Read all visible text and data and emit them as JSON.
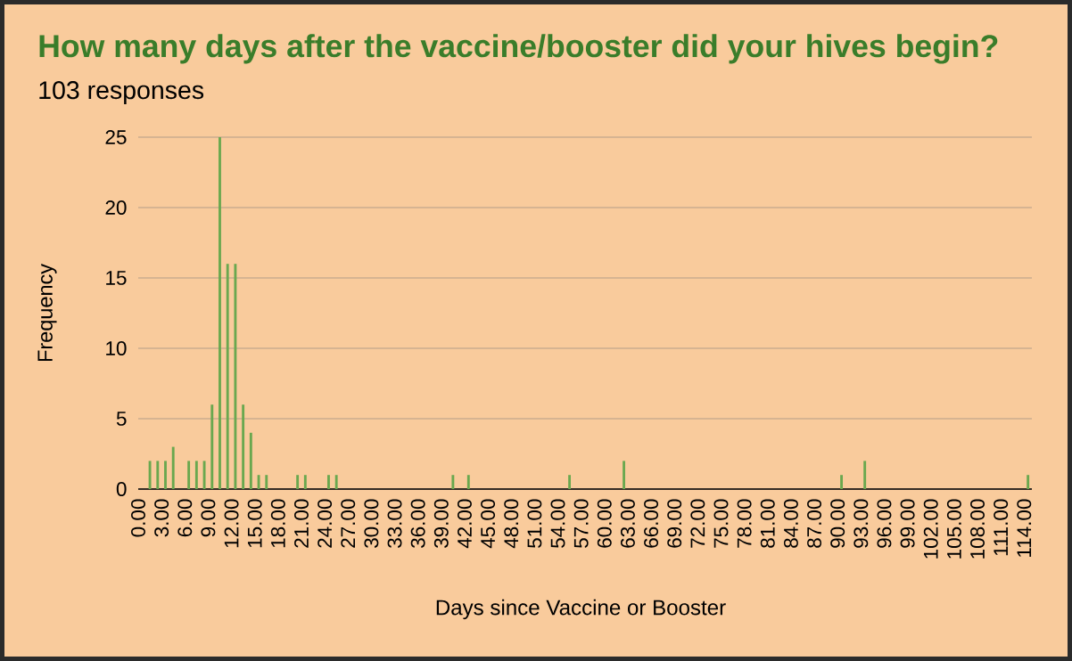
{
  "chart_data": {
    "type": "histogram",
    "title": "How many days after the vaccine/booster did your hives begin?",
    "subtitle": "103 responses",
    "xlabel": "Days since Vaccine or Booster",
    "ylabel": "Frequency",
    "bins": [
      0,
      1,
      2,
      3,
      4,
      5,
      6,
      7,
      8,
      9,
      10,
      11,
      12,
      13,
      14,
      15,
      16,
      17,
      18,
      19,
      20,
      21,
      22,
      23,
      24,
      25,
      26,
      27,
      28,
      29,
      30,
      31,
      32,
      33,
      34,
      35,
      36,
      37,
      38,
      39,
      40,
      41,
      42,
      43,
      44,
      45,
      46,
      47,
      48,
      49,
      50,
      51,
      52,
      53,
      54,
      55,
      56,
      57,
      58,
      59,
      60,
      61,
      62,
      63,
      64,
      65,
      66,
      67,
      68,
      69,
      70,
      71,
      72,
      73,
      74,
      75,
      76,
      77,
      78,
      79,
      80,
      81,
      82,
      83,
      84,
      85,
      86,
      87,
      88,
      89,
      90,
      91,
      92,
      93,
      94,
      95,
      96,
      97,
      98,
      99,
      100,
      101,
      102,
      103,
      104,
      105,
      106,
      107,
      108,
      109,
      110,
      111,
      112,
      113,
      114,
      115
    ],
    "values": [
      0,
      2,
      2,
      2,
      3,
      0,
      2,
      2,
      2,
      6,
      25,
      16,
      16,
      6,
      4,
      1,
      1,
      0,
      0,
      0,
      1,
      1,
      0,
      0,
      1,
      1,
      0,
      0,
      0,
      0,
      0,
      0,
      0,
      0,
      0,
      0,
      0,
      0,
      0,
      0,
      1,
      0,
      1,
      0,
      0,
      0,
      0,
      0,
      0,
      0,
      0,
      0,
      0,
      0,
      0,
      1,
      0,
      0,
      0,
      0,
      0,
      0,
      2,
      0,
      0,
      0,
      0,
      0,
      0,
      0,
      0,
      0,
      0,
      0,
      0,
      0,
      0,
      0,
      0,
      0,
      0,
      0,
      0,
      0,
      0,
      0,
      0,
      0,
      0,
      0,
      1,
      0,
      0,
      2,
      0,
      0,
      0,
      0,
      0,
      0,
      0,
      0,
      0,
      0,
      0,
      0,
      0,
      0,
      0,
      0,
      0,
      0,
      0,
      0,
      1
    ],
    "color": "#6aa84f",
    "xlim": [
      0,
      115
    ],
    "xticks": [
      {
        "value": 0,
        "label": "0.00"
      },
      {
        "value": 3,
        "label": "3.00"
      },
      {
        "value": 6,
        "label": "6.00"
      },
      {
        "value": 9,
        "label": "9.00"
      },
      {
        "value": 12,
        "label": "12.00"
      },
      {
        "value": 15,
        "label": "15.00"
      },
      {
        "value": 18,
        "label": "18.00"
      },
      {
        "value": 21,
        "label": "21.00"
      },
      {
        "value": 24,
        "label": "24.00"
      },
      {
        "value": 27,
        "label": "27.00"
      },
      {
        "value": 30,
        "label": "30.00"
      },
      {
        "value": 33,
        "label": "33.00"
      },
      {
        "value": 36,
        "label": "36.00"
      },
      {
        "value": 39,
        "label": "39.00"
      },
      {
        "value": 42,
        "label": "42.00"
      },
      {
        "value": 45,
        "label": "45.00"
      },
      {
        "value": 48,
        "label": "48.00"
      },
      {
        "value": 51,
        "label": "51.00"
      },
      {
        "value": 54,
        "label": "54.00"
      },
      {
        "value": 57,
        "label": "57.00"
      },
      {
        "value": 60,
        "label": "60.00"
      },
      {
        "value": 63,
        "label": "63.00"
      },
      {
        "value": 66,
        "label": "66.00"
      },
      {
        "value": 69,
        "label": "69.00"
      },
      {
        "value": 72,
        "label": "72.00"
      },
      {
        "value": 75,
        "label": "75.00"
      },
      {
        "value": 78,
        "label": "78.00"
      },
      {
        "value": 81,
        "label": "81.00"
      },
      {
        "value": 84,
        "label": "84.00"
      },
      {
        "value": 87,
        "label": "87.00"
      },
      {
        "value": 90,
        "label": "90.00"
      },
      {
        "value": 93,
        "label": "93.00"
      },
      {
        "value": 96,
        "label": "96.00"
      },
      {
        "value": 99,
        "label": "99.00"
      },
      {
        "value": 102,
        "label": "102.00"
      },
      {
        "value": 105,
        "label": "105.00"
      },
      {
        "value": 108,
        "label": "108.00"
      },
      {
        "value": 111,
        "label": "111.00"
      },
      {
        "value": 114,
        "label": "114.00"
      }
    ],
    "ylim": [
      0,
      25
    ],
    "yticks": [
      0,
      5,
      10,
      15,
      20,
      25
    ],
    "grid": "y"
  }
}
